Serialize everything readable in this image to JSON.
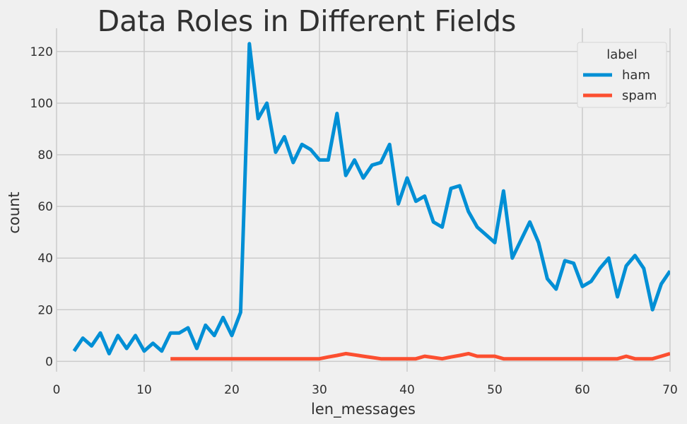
{
  "chart_data": {
    "type": "line",
    "title": "Data Roles in Different Fields",
    "xlabel": "len_messages",
    "ylabel": "count",
    "xlim": [
      0,
      70
    ],
    "ylim": [
      -4,
      129
    ],
    "x_ticks": [
      0,
      10,
      20,
      30,
      40,
      50,
      60,
      70
    ],
    "y_ticks": [
      0,
      20,
      40,
      60,
      80,
      100,
      120
    ],
    "grid": true,
    "legend": {
      "title": "label",
      "placement": "top-right"
    },
    "series": [
      {
        "name": "ham",
        "color": "#008fd5",
        "x": [
          2,
          3,
          4,
          5,
          6,
          7,
          8,
          9,
          10,
          11,
          12,
          13,
          14,
          15,
          16,
          17,
          18,
          19,
          20,
          21,
          22,
          23,
          24,
          25,
          26,
          27,
          28,
          29,
          30,
          31,
          32,
          33,
          34,
          35,
          36,
          37,
          38,
          39,
          40,
          41,
          42,
          43,
          44,
          45,
          46,
          47,
          48,
          49,
          50,
          51,
          52,
          53,
          54,
          55,
          56,
          57,
          58,
          59,
          60,
          61,
          62,
          63,
          64,
          65,
          66,
          67,
          68,
          69,
          70
        ],
        "y": [
          4,
          9,
          6,
          11,
          3,
          10,
          5,
          10,
          4,
          7,
          4,
          11,
          11,
          13,
          5,
          14,
          10,
          17,
          10,
          19,
          123,
          94,
          100,
          81,
          87,
          77,
          84,
          82,
          78,
          78,
          96,
          72,
          78,
          71,
          76,
          77,
          84,
          61,
          71,
          62,
          64,
          54,
          52,
          67,
          68,
          58,
          52,
          49,
          46,
          66,
          40,
          47,
          54,
          46,
          32,
          28,
          39,
          38,
          29,
          31,
          36,
          40,
          25,
          37,
          41,
          36,
          20,
          30,
          35
        ]
      },
      {
        "name": "spam",
        "color": "#fc4f30",
        "x": [
          13,
          14,
          15,
          16,
          17,
          18,
          19,
          20,
          21,
          22,
          23,
          24,
          25,
          26,
          27,
          28,
          29,
          30,
          31,
          32,
          33,
          34,
          35,
          36,
          37,
          38,
          39,
          40,
          41,
          42,
          43,
          44,
          45,
          46,
          47,
          48,
          49,
          50,
          51,
          52,
          53,
          54,
          55,
          56,
          57,
          58,
          59,
          60,
          61,
          62,
          63,
          64,
          65,
          66,
          67,
          68,
          69,
          70
        ],
        "y": [
          1,
          1,
          1,
          1,
          1,
          1,
          1,
          1,
          1,
          1,
          1,
          1,
          1,
          1,
          1,
          1,
          1,
          1,
          1.7,
          2.3,
          3,
          2.5,
          2,
          1.5,
          1,
          1,
          1,
          1,
          1,
          2,
          1.5,
          1,
          1.7,
          2.3,
          3,
          2,
          2,
          2,
          1,
          1,
          1,
          1,
          1,
          1,
          1,
          1,
          1,
          1,
          1,
          1,
          1,
          1,
          2,
          1,
          1,
          1,
          2,
          3
        ]
      }
    ]
  }
}
